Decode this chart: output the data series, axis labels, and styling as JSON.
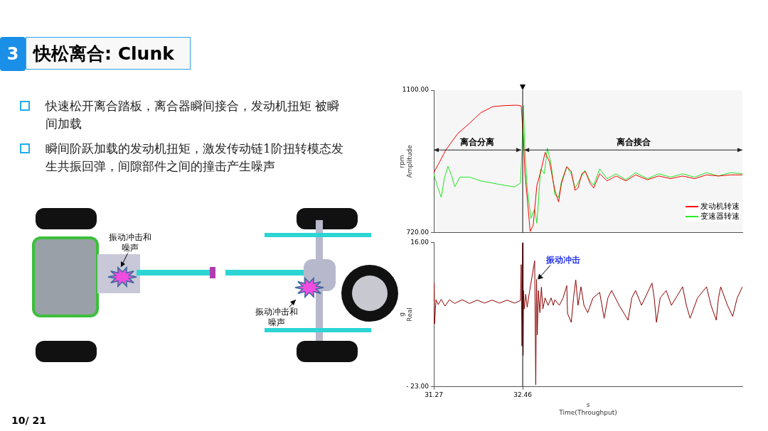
{
  "chart_data": [
    {
      "type": "line",
      "ylabel": "rpm\nAmplitude",
      "xlim": [
        31.27,
        35.4
      ],
      "ylim": [
        720,
        1100
      ],
      "yticks": [
        {
          "value": 1100,
          "label": "1100.00"
        },
        {
          "value": 720,
          "label": "720.00"
        }
      ],
      "tick_labels": "y",
      "grid": false,
      "legend": "bottom right",
      "marker": "none",
      "line_style": "solid",
      "annotations": [
        "3",
        "快松离合: Clunk",
        "快速松开离合踏板，离合器瞬间接合，发动机扭矩 被瞬间加载",
        "瞬间阶跃加载的发动机扭矩，激发传动链1阶扭转模态发生共振回弹，间隙部件之间的撞击产生噪声",
        "振动冲击和噪声",
        "振动冲击和噪声",
        "10/ 21"
      ],
      "ref_lines": [
        {
          "axis": "x",
          "value": 32.46
        }
      ],
      "bands": [
        {
          "axis": "x",
          "from": 31.27,
          "to": 32.44,
          "label": "离合分离"
        },
        {
          "axis": "x",
          "from": 32.48,
          "to": 35.4,
          "label": "离合接合"
        }
      ],
      "series": [
        {
          "name": "发动机转速",
          "color": "#ff0000",
          "x": [
            31.27,
            31.33,
            31.43,
            31.59,
            31.75,
            31.9,
            32.06,
            32.22,
            32.38,
            32.44,
            32.47,
            32.49,
            32.52,
            32.56,
            32.6,
            32.65,
            32.71,
            32.76,
            32.82,
            32.89,
            32.94,
            32.98,
            33.05,
            33.11,
            33.16,
            33.2,
            33.25,
            33.3,
            33.36,
            33.41,
            33.49,
            33.59,
            33.71,
            33.84,
            33.97,
            34.13,
            34.28,
            34.44,
            34.6,
            34.76,
            34.92,
            35.08,
            35.24,
            35.4
          ],
          "values": [
            880,
            902,
            940,
            984,
            1012,
            1040,
            1056,
            1059,
            1060,
            1058,
            971,
            877,
            814,
            723,
            739,
            846,
            890,
            934,
            908,
            833,
            802,
            852,
            896,
            883,
            833,
            839,
            877,
            883,
            852,
            839,
            877,
            858,
            871,
            858,
            874,
            861,
            871,
            864,
            871,
            864,
            874,
            871,
            874,
            874
          ]
        },
        {
          "name": "变速器转速",
          "color": "#22ee22",
          "x": [
            31.27,
            31.32,
            31.37,
            31.41,
            31.46,
            31.51,
            31.55,
            31.62,
            31.75,
            31.9,
            32.06,
            32.22,
            32.35,
            32.43,
            32.45,
            32.47,
            32.49,
            32.52,
            32.57,
            32.62,
            32.65,
            32.7,
            32.75,
            32.79,
            32.84,
            32.89,
            32.94,
            32.98,
            33.05,
            33.11,
            33.16,
            33.2,
            33.29,
            33.36,
            33.41,
            33.49,
            33.59,
            33.71,
            33.84,
            33.97,
            34.13,
            34.28,
            34.44,
            34.6,
            34.76,
            34.92,
            35.08,
            35.24,
            35.4
          ],
          "values": [
            877,
            842,
            814,
            864,
            897,
            871,
            842,
            868,
            868,
            858,
            852,
            846,
            842,
            852,
            940,
            1059,
            940,
            839,
            758,
            783,
            745,
            890,
            877,
            946,
            902,
            821,
            814,
            858,
            896,
            877,
            839,
            852,
            886,
            858,
            846,
            890,
            864,
            877,
            861,
            880,
            864,
            877,
            868,
            877,
            868,
            880,
            871,
            880,
            877
          ]
        }
      ]
    },
    {
      "type": "line",
      "ylabel": "g\nReal",
      "xlabel": "s\nTime(Throughput)",
      "xlim": [
        31.27,
        35.4
      ],
      "xticks": [
        31.27,
        32.46
      ],
      "ylim": [
        -23,
        16
      ],
      "yticks": [
        {
          "value": 16,
          "label": "16.00"
        },
        {
          "value": -23,
          "label": "- 23.00"
        }
      ],
      "grid": false,
      "legend": false,
      "marker": "none",
      "line_style": "solid",
      "ref_lines": [
        {
          "axis": "x",
          "value": 32.46
        }
      ],
      "annotations": [
        {
          "text": "振动冲击",
          "x": 32.66,
          "y": 6
        }
      ],
      "series": [
        {
          "color": "#8b0000",
          "x": [
            31.27,
            31.275,
            31.28,
            31.3,
            31.33,
            31.37,
            31.42,
            31.48,
            31.55,
            31.65,
            31.75,
            31.85,
            31.95,
            32.05,
            32.15,
            32.25,
            32.35,
            32.43,
            32.44,
            32.45,
            32.46,
            32.465,
            32.47,
            32.48,
            32.5,
            32.52,
            32.55,
            32.62,
            32.635,
            32.645,
            32.655,
            32.67,
            32.69,
            32.71,
            32.73,
            32.76,
            32.8,
            32.84,
            32.87,
            32.89,
            32.95,
            33.0,
            33.05,
            33.06,
            33.11,
            33.14,
            33.17,
            33.2,
            33.24,
            33.28,
            33.33,
            33.4,
            33.49,
            33.52,
            33.55,
            33.6,
            33.65,
            33.75,
            33.87,
            33.92,
            33.97,
            34.05,
            34.19,
            34.22,
            34.25,
            34.3,
            34.38,
            34.45,
            34.6,
            34.65,
            34.7,
            34.8,
            34.92,
            34.98,
            35.05,
            35.08,
            35.11,
            35.2,
            35.27,
            35.33,
            35.4
          ],
          "values": [
            0,
            5,
            -6,
            0.5,
            -0.8,
            0.6,
            -1.2,
            0.5,
            -0.5,
            0.5,
            -0.5,
            0.4,
            -0.4,
            0.4,
            -0.4,
            0.4,
            -0.4,
            0.3,
            10,
            -12,
            15.8,
            -14.5,
            3,
            -2,
            2,
            -1.5,
            2.5,
            11,
            -22.5,
            6,
            -9,
            3,
            -3,
            3.9,
            -2,
            1,
            -1,
            1,
            -1,
            0.5,
            -1,
            1,
            4.3,
            -3.2,
            -5.6,
            1,
            5.9,
            -1,
            4,
            -1,
            -3,
            1,
            2.5,
            -1,
            -4.5,
            1,
            3,
            -1,
            -5,
            1,
            3,
            -1,
            5,
            1,
            -5.6,
            1,
            3,
            -1,
            4,
            -1,
            -4.5,
            1,
            4,
            -1,
            -5,
            1,
            4,
            -1,
            -4,
            1,
            4
          ]
        }
      ]
    }
  ]
}
